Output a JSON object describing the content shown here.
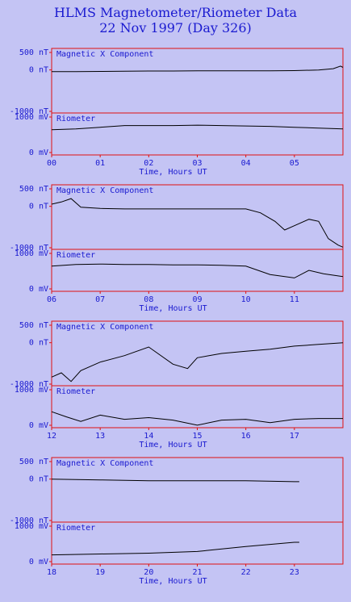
{
  "chart_data": {
    "type": "line",
    "title": "HLMS Magnetometer/Riometer Data",
    "subtitle": "22 Nov 1997 (Day 326)",
    "xlabel": "Time, Hours UT",
    "colors": {
      "frame": "#e01010",
      "text": "#1a1ad0",
      "trace": "#000000",
      "background": "#c4c4f4"
    },
    "mag_label": "Magnetic X Component",
    "rio_label": "Riometer",
    "mag_ticks": [
      "500 nT",
      "0 nT",
      "-1000 nT"
    ],
    "rio_ticks": [
      "1000 mV",
      "0 mV"
    ],
    "mag_ylim": [
      -1000,
      500
    ],
    "rio_ylim": [
      0,
      1000
    ],
    "panels": [
      {
        "hours": [
          "00",
          "01",
          "02",
          "03",
          "04",
          "05"
        ],
        "xlim": [
          0,
          6
        ],
        "mag": {
          "x": [
            0,
            0.5,
            1,
            1.5,
            2,
            2.5,
            3,
            3.5,
            4,
            4.5,
            5,
            5.5,
            5.8,
            5.95,
            6
          ],
          "y": [
            -40,
            -40,
            -35,
            -30,
            -25,
            -25,
            -20,
            -20,
            -20,
            -20,
            -15,
            0,
            30,
            90,
            60
          ]
        },
        "rio": {
          "x": [
            0,
            0.5,
            1,
            1.5,
            2,
            2.5,
            3,
            3.5,
            4,
            4.5,
            5,
            5.5,
            6
          ],
          "y": [
            600,
            620,
            660,
            700,
            700,
            700,
            710,
            700,
            690,
            680,
            660,
            640,
            620
          ]
        }
      },
      {
        "hours": [
          "06",
          "07",
          "08",
          "09",
          "10",
          "11"
        ],
        "xlim": [
          6,
          12
        ],
        "mag": {
          "x": [
            6,
            6.2,
            6.4,
            6.6,
            7,
            7.5,
            8,
            8.5,
            9,
            9.5,
            10,
            10.3,
            10.6,
            10.8,
            11,
            11.3,
            11.5,
            11.7,
            11.9,
            12
          ],
          "y": [
            50,
            100,
            180,
            -20,
            -50,
            -60,
            -60,
            -60,
            -60,
            -60,
            -60,
            -150,
            -350,
            -550,
            -450,
            -300,
            -350,
            -750,
            -900,
            -950
          ]
        },
        "rio": {
          "x": [
            6,
            6.5,
            7,
            7.5,
            8,
            8.5,
            9,
            9.5,
            10,
            10.5,
            11,
            11.3,
            11.6,
            12
          ],
          "y": [
            600,
            640,
            650,
            640,
            640,
            630,
            630,
            620,
            600,
            400,
            320,
            500,
            420,
            350
          ]
        }
      },
      {
        "hours": [
          "12",
          "13",
          "14",
          "15",
          "16",
          "17"
        ],
        "xlim": [
          12,
          18
        ],
        "mag": {
          "x": [
            12,
            12.2,
            12.4,
            12.6,
            13,
            13.5,
            14,
            14.5,
            14.8,
            15,
            15.5,
            16,
            16.5,
            17,
            17.5,
            18
          ],
          "y": [
            -800,
            -700,
            -900,
            -650,
            -450,
            -300,
            -100,
            -500,
            -600,
            -350,
            -250,
            -200,
            -150,
            -80,
            -40,
            0
          ]
        },
        "rio": {
          "x": [
            12,
            12.3,
            12.6,
            13,
            13.5,
            14,
            14.5,
            15,
            15.5,
            16,
            16.5,
            17,
            17.5,
            18
          ],
          "y": [
            380,
            260,
            150,
            300,
            200,
            240,
            180,
            60,
            180,
            200,
            120,
            200,
            220,
            220
          ]
        }
      },
      {
        "hours": [
          "18",
          "19",
          "20",
          "21",
          "22",
          "23"
        ],
        "xlim": [
          18,
          24
        ],
        "mag": {
          "x": [
            18,
            19,
            20,
            21,
            22,
            23,
            23.1
          ],
          "y": [
            0,
            -20,
            -40,
            -40,
            -40,
            -60,
            -60
          ]
        },
        "rio": {
          "x": [
            18,
            19,
            20,
            21,
            22,
            23,
            23.1
          ],
          "y": [
            220,
            240,
            260,
            300,
            420,
            520,
            520
          ]
        }
      }
    ]
  }
}
